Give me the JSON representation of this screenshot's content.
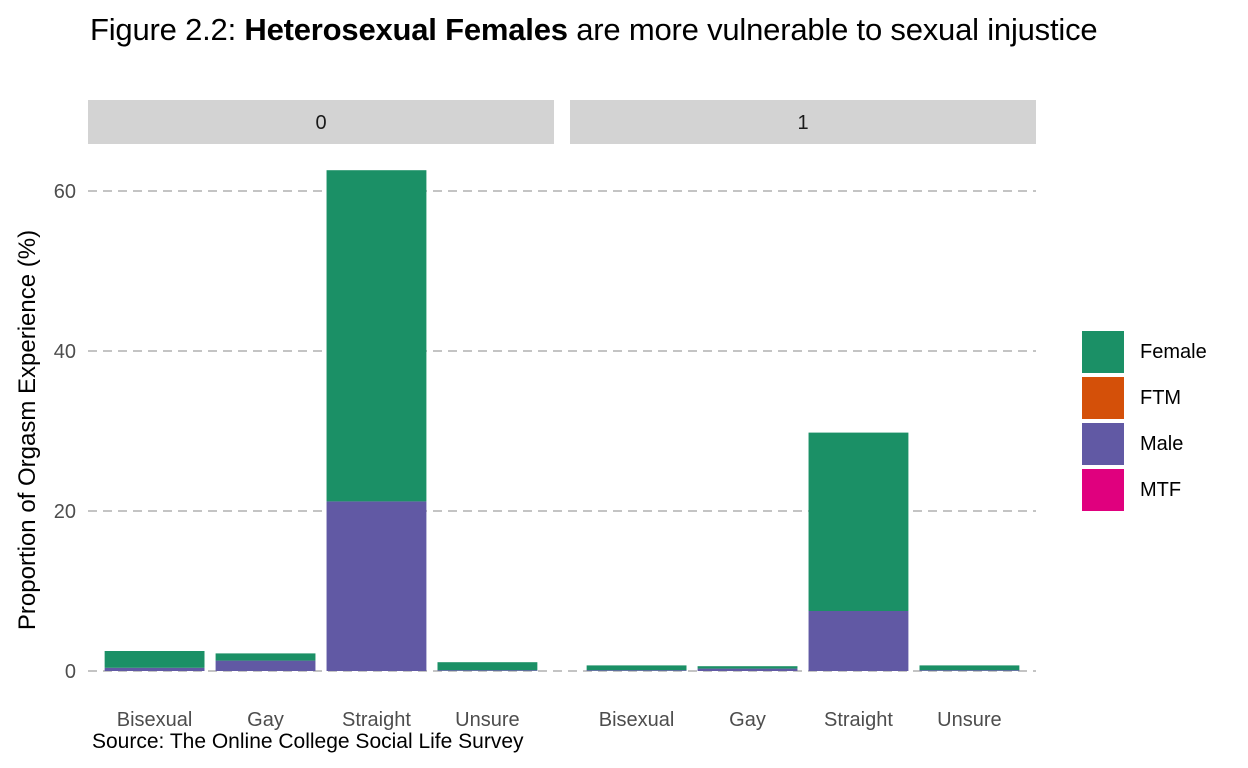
{
  "title": {
    "prefix": "Figure 2.2: ",
    "bold": "Heterosexual Females",
    "suffix": " are more vulnerable to sexual injustice"
  },
  "caption": "Source: The Online College Social Life Survey",
  "chart_data": {
    "type": "bar",
    "stacked": true,
    "ylabel": "Proportion of Orgasm Experience (%)",
    "xlabel": "",
    "ylim": [
      0,
      70
    ],
    "yticks": [
      0,
      20,
      40,
      60
    ],
    "grid": "horizontal dashed",
    "legend_placement": "right",
    "categories": [
      "Bisexual",
      "Gay",
      "Straight",
      "Unsure"
    ],
    "panels": [
      {
        "label": "0",
        "series": [
          {
            "name": "Female",
            "values": [
              2.1,
              0.9,
              41.4,
              1.0
            ]
          },
          {
            "name": "FTM",
            "values": [
              0,
              0,
              0,
              0
            ]
          },
          {
            "name": "Male",
            "values": [
              0.4,
              1.3,
              21.2,
              0.1
            ]
          },
          {
            "name": "MTF",
            "values": [
              0,
              0,
              0,
              0
            ]
          }
        ]
      },
      {
        "label": "1",
        "series": [
          {
            "name": "Female",
            "values": [
              0.6,
              0.3,
              22.3,
              0.6
            ]
          },
          {
            "name": "FTM",
            "values": [
              0,
              0,
              0,
              0
            ]
          },
          {
            "name": "Male",
            "values": [
              0.1,
              0.3,
              7.5,
              0.1
            ]
          },
          {
            "name": "MTF",
            "values": [
              0,
              0,
              0,
              0
            ]
          }
        ]
      }
    ],
    "colors": {
      "Female": "#1b9066",
      "FTM": "#d45009",
      "Male": "#6159a4",
      "MTF": "#e0007e"
    },
    "legend": [
      "Female",
      "FTM",
      "Male",
      "MTF"
    ]
  }
}
